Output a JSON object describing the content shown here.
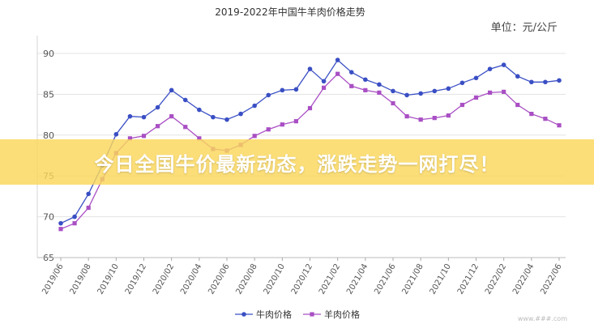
{
  "chart_data": {
    "type": "line",
    "title": "2019-2022年中国牛羊肉价格走势",
    "unit_label": "单位：元/公斤",
    "ylim": [
      65,
      90
    ],
    "yticks": [
      65,
      70,
      75,
      80,
      85,
      90
    ],
    "grid": "horizontal",
    "legend_position": "bottom-center",
    "x_tick_labels": [
      "2019/06",
      "2019/08",
      "2019/10",
      "2019/12",
      "2020/02",
      "2020/04",
      "2020/06",
      "2020/08",
      "2020/10",
      "2020/12",
      "2021/02",
      "2021/04",
      "2021/06",
      "2021/08",
      "2021/10",
      "2021/12",
      "2022/02",
      "2022/04",
      "2022/06"
    ],
    "x": [
      "2019/06",
      "2019/07",
      "2019/08",
      "2019/09",
      "2019/10",
      "2019/11",
      "2019/12",
      "2020/01",
      "2020/02",
      "2020/03",
      "2020/04",
      "2020/05",
      "2020/06",
      "2020/07",
      "2020/08",
      "2020/09",
      "2020/10",
      "2020/11",
      "2020/12",
      "2021/01",
      "2021/02",
      "2021/03",
      "2021/04",
      "2021/05",
      "2021/06",
      "2021/07",
      "2021/08",
      "2021/09",
      "2021/10",
      "2021/11",
      "2021/12",
      "2022/01",
      "2022/02",
      "2022/03",
      "2022/04",
      "2022/05",
      "2022/06"
    ],
    "series": [
      {
        "name": "牛肉价格",
        "color": "#3a4fc4",
        "marker": "circle",
        "values": [
          69.2,
          70.0,
          72.8,
          76.3,
          80.1,
          82.3,
          82.2,
          83.4,
          85.5,
          84.3,
          83.1,
          82.2,
          81.9,
          82.6,
          83.6,
          84.9,
          85.5,
          85.6,
          88.1,
          86.6,
          89.2,
          87.7,
          86.8,
          86.2,
          85.4,
          84.9,
          85.1,
          85.4,
          85.7,
          86.4,
          87.0,
          88.1,
          88.6,
          87.2,
          86.5,
          86.5,
          86.7
        ]
      },
      {
        "name": "羊肉价格",
        "color": "#a94fc4",
        "marker": "square",
        "values": [
          68.5,
          69.2,
          71.1,
          74.6,
          77.8,
          79.6,
          79.9,
          81.1,
          82.3,
          81.0,
          79.6,
          78.3,
          78.1,
          78.8,
          79.9,
          80.7,
          81.3,
          81.7,
          83.3,
          85.8,
          87.5,
          86.0,
          85.5,
          85.2,
          83.9,
          82.3,
          81.9,
          82.1,
          82.4,
          83.7,
          84.6,
          85.2,
          85.3,
          83.7,
          82.6,
          82.0,
          81.2
        ]
      }
    ]
  },
  "banner": {
    "text": "今日全国牛价最新动态，涨跌走势一网打尽！",
    "color": "#f9d65a"
  },
  "watermark": "www.###.com"
}
